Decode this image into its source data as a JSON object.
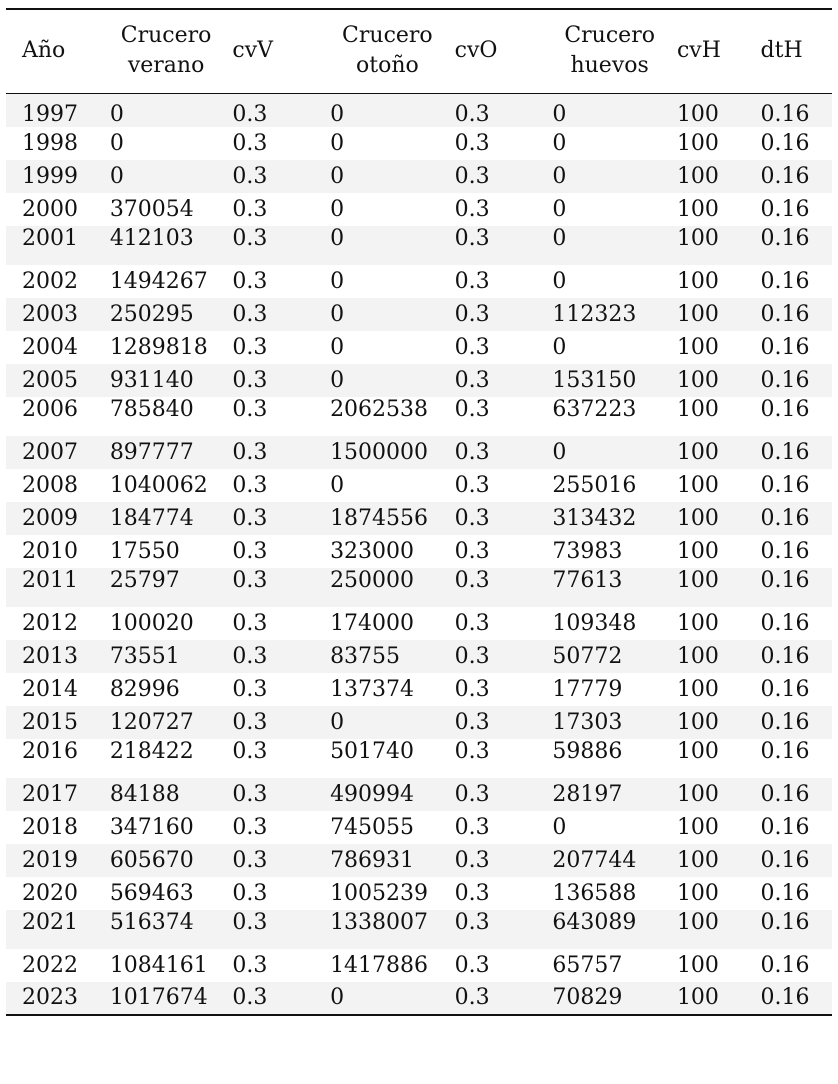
{
  "table": {
    "headers": [
      [
        "Año"
      ],
      [
        "Crucero",
        "verano"
      ],
      [
        "cvV"
      ],
      [
        "Crucero",
        "otoño"
      ],
      [
        "cvO"
      ],
      [
        "Crucero",
        "huevos"
      ],
      [
        "cvH"
      ],
      [
        "dtH"
      ]
    ],
    "rows": [
      [
        "1997",
        "0",
        "0.3",
        "0",
        "0.3",
        "0",
        "100",
        "0.16"
      ],
      [
        "1998",
        "0",
        "0.3",
        "0",
        "0.3",
        "0",
        "100",
        "0.16"
      ],
      [
        "1999",
        "0",
        "0.3",
        "0",
        "0.3",
        "0",
        "100",
        "0.16"
      ],
      [
        "2000",
        "370054",
        "0.3",
        "0",
        "0.3",
        "0",
        "100",
        "0.16"
      ],
      [
        "2001",
        "412103",
        "0.3",
        "0",
        "0.3",
        "0",
        "100",
        "0.16"
      ],
      [
        "2002",
        "1494267",
        "0.3",
        "0",
        "0.3",
        "0",
        "100",
        "0.16"
      ],
      [
        "2003",
        "250295",
        "0.3",
        "0",
        "0.3",
        "112323",
        "100",
        "0.16"
      ],
      [
        "2004",
        "1289818",
        "0.3",
        "0",
        "0.3",
        "0",
        "100",
        "0.16"
      ],
      [
        "2005",
        "931140",
        "0.3",
        "0",
        "0.3",
        "153150",
        "100",
        "0.16"
      ],
      [
        "2006",
        "785840",
        "0.3",
        "2062538",
        "0.3",
        "637223",
        "100",
        "0.16"
      ],
      [
        "2007",
        "897777",
        "0.3",
        "1500000",
        "0.3",
        "0",
        "100",
        "0.16"
      ],
      [
        "2008",
        "1040062",
        "0.3",
        "0",
        "0.3",
        "255016",
        "100",
        "0.16"
      ],
      [
        "2009",
        "184774",
        "0.3",
        "1874556",
        "0.3",
        "313432",
        "100",
        "0.16"
      ],
      [
        "2010",
        "17550",
        "0.3",
        "323000",
        "0.3",
        "73983",
        "100",
        "0.16"
      ],
      [
        "2011",
        "25797",
        "0.3",
        "250000",
        "0.3",
        "77613",
        "100",
        "0.16"
      ],
      [
        "2012",
        "100020",
        "0.3",
        "174000",
        "0.3",
        "109348",
        "100",
        "0.16"
      ],
      [
        "2013",
        "73551",
        "0.3",
        "83755",
        "0.3",
        "50772",
        "100",
        "0.16"
      ],
      [
        "2014",
        "82996",
        "0.3",
        "137374",
        "0.3",
        "17779",
        "100",
        "0.16"
      ],
      [
        "2015",
        "120727",
        "0.3",
        "0",
        "0.3",
        "17303",
        "100",
        "0.16"
      ],
      [
        "2016",
        "218422",
        "0.3",
        "501740",
        "0.3",
        "59886",
        "100",
        "0.16"
      ],
      [
        "2017",
        "84188",
        "0.3",
        "490994",
        "0.3",
        "28197",
        "100",
        "0.16"
      ],
      [
        "2018",
        "347160",
        "0.3",
        "745055",
        "0.3",
        "0",
        "100",
        "0.16"
      ],
      [
        "2019",
        "605670",
        "0.3",
        "786931",
        "0.3",
        "207744",
        "100",
        "0.16"
      ],
      [
        "2020",
        "569463",
        "0.3",
        "1005239",
        "0.3",
        "136588",
        "100",
        "0.16"
      ],
      [
        "2021",
        "516374",
        "0.3",
        "1338007",
        "0.3",
        "643089",
        "100",
        "0.16"
      ],
      [
        "2022",
        "1084161",
        "0.3",
        "1417886",
        "0.3",
        "65757",
        "100",
        "0.16"
      ],
      [
        "2023",
        "1017674",
        "0.3",
        "0",
        "0.3",
        "70829",
        "100",
        "0.16"
      ]
    ]
  }
}
